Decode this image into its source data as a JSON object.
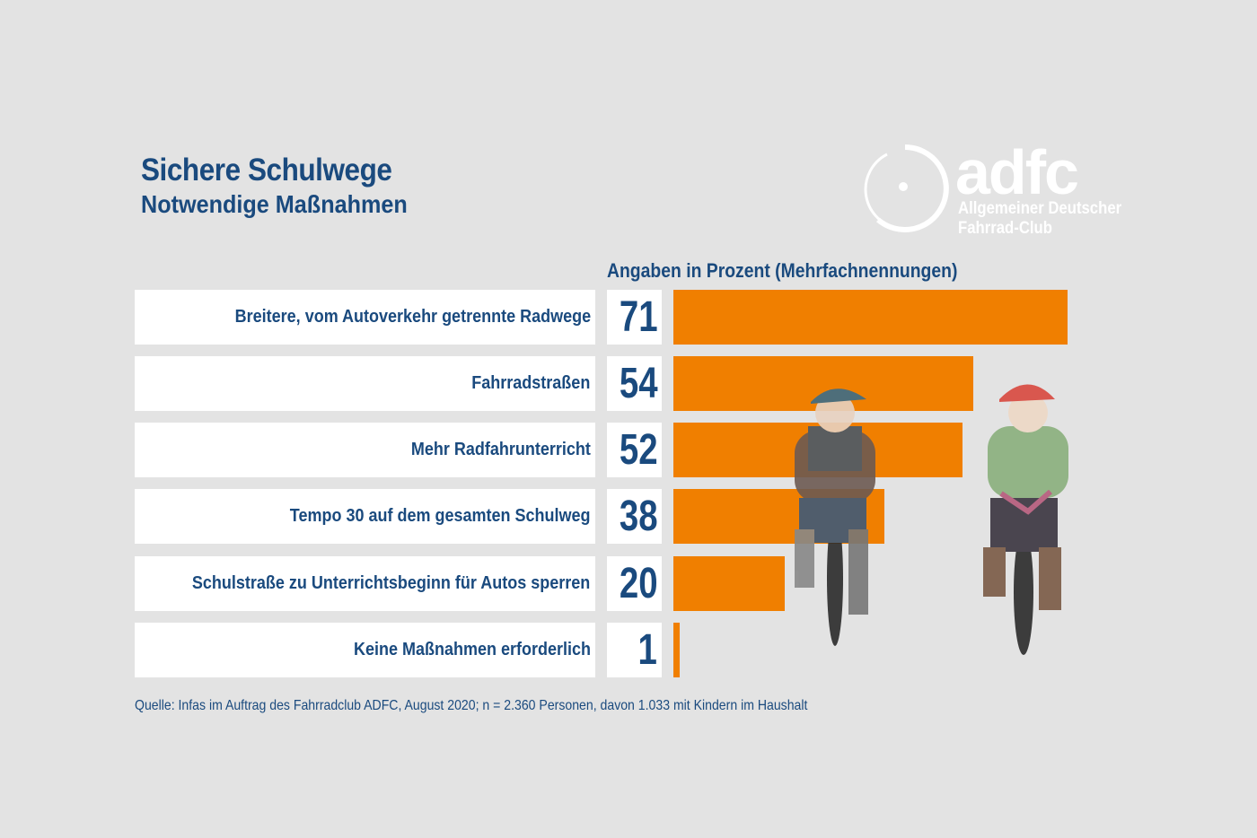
{
  "header": {
    "title": "Sichere Schulwege",
    "subtitle": "Notwendige Maßnahmen"
  },
  "logo": {
    "word": "adfc",
    "line1": "Allgemeiner Deutscher",
    "line2": "Fahrrad-Club"
  },
  "colors": {
    "bar": "#f07f00",
    "text": "#1a4a7e",
    "background": "#e3e3e3"
  },
  "chart_data": {
    "type": "bar",
    "orientation": "horizontal",
    "unit_label": "Angaben in Prozent (Mehrfachnennungen)",
    "categories": [
      "Breitere, vom Autoverkehr getrennte Radwege",
      "Fahrradstraßen",
      "Mehr Radfahrunterricht",
      "Tempo 30 auf dem gesamten Schulweg",
      "Schulstraße zu Unterrichtsbeginn für Autos sperren",
      "Keine Maßnahmen erforderlich"
    ],
    "values": [
      71,
      54,
      52,
      38,
      20,
      1
    ],
    "value_labels": [
      "71",
      "54",
      "52",
      "38",
      "20",
      "1"
    ],
    "xlim": [
      0,
      71
    ],
    "grid": false
  },
  "source": "Quelle: Infas im Auftrag des Fahrradclub ADFC, August 2020; n = 2.360 Personen, davon 1.033 mit Kindern im Haushalt",
  "illustration": "two-children-cycling"
}
